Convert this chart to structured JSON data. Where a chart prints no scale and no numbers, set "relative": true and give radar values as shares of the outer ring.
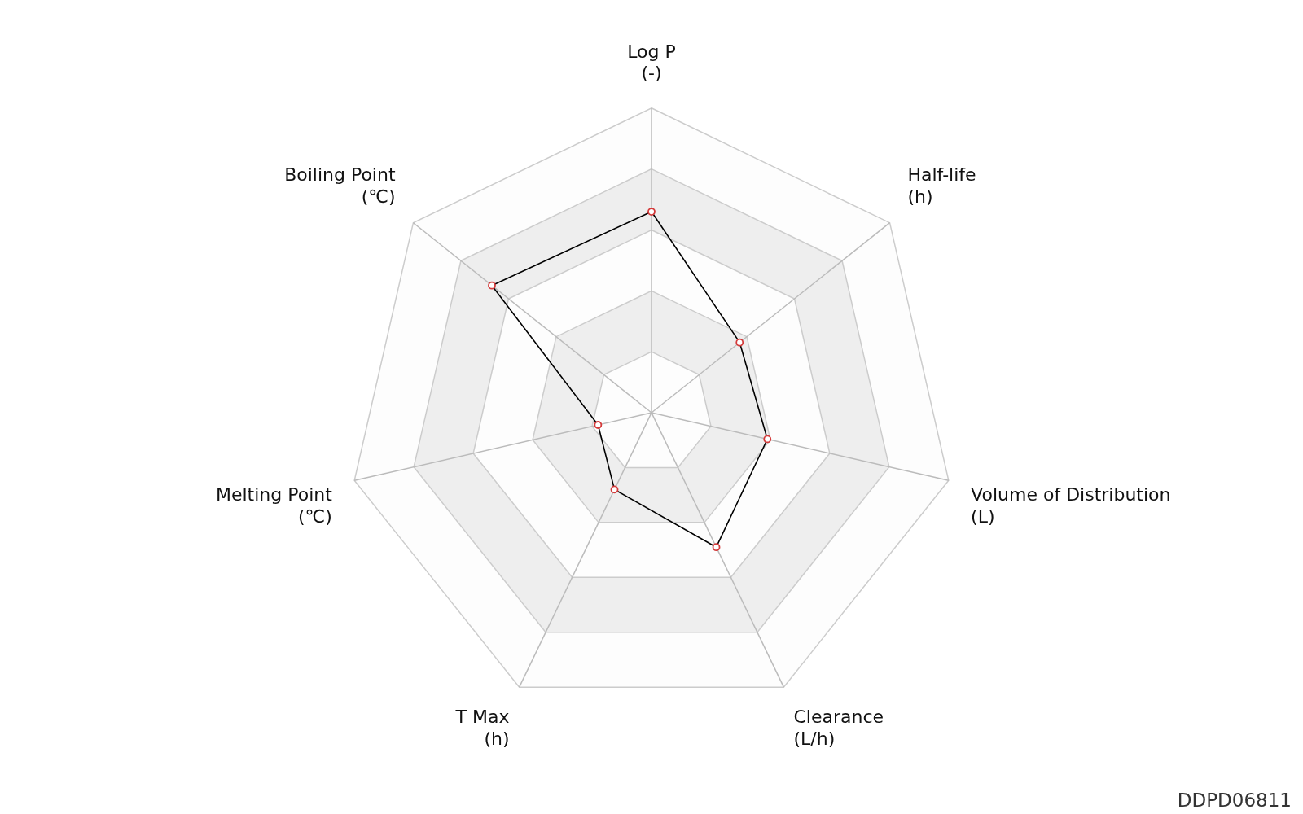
{
  "chart_data": {
    "type": "radar",
    "relative": true,
    "grid": true,
    "marker": "circle",
    "line_style": "solid",
    "categories": [
      "Log P\n(-)",
      "Half-life\n(h)",
      "Volume of Distribution\n(L)",
      "Clearance\n(L/h)",
      "T Max\n(h)",
      "Melting Point\n(℃)",
      "Boiling Point\n(℃)"
    ],
    "series": [
      {
        "color": "#000000",
        "colors": [
          "#d43a3a",
          "#d43a3a",
          "#d43a3a",
          "#d43a3a",
          "#d43a3a",
          "#d43a3a",
          "#d43a3a"
        ],
        "values": [
          0.66,
          0.37,
          0.39,
          0.49,
          0.28,
          0.18,
          0.67
        ]
      }
    ],
    "annotations": [
      "DDPD06811"
    ]
  }
}
